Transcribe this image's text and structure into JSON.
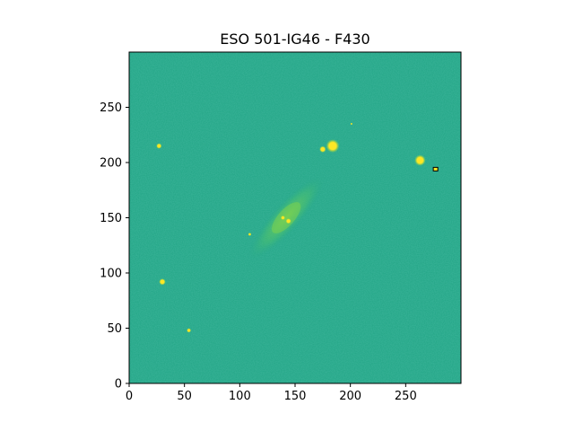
{
  "figure": {
    "title": "ESO 501-IG46 - F430"
  },
  "image_panel": {
    "colormap_background": "#21a585",
    "highlight_color": "#fde725",
    "galaxy_color": "#5ec962",
    "frame_color": "#000000",
    "x_range": [
      0,
      300
    ],
    "y_range": [
      0,
      300
    ],
    "x_ticks": [
      "0",
      "50",
      "100",
      "150",
      "200",
      "250"
    ],
    "y_ticks": [
      "0",
      "50",
      "100",
      "150",
      "200",
      "250"
    ],
    "x_tick_values": [
      0,
      50,
      100,
      150,
      200,
      250
    ],
    "y_tick_values": [
      0,
      50,
      100,
      150,
      200,
      250
    ],
    "sources": [
      {
        "x": 184,
        "y": 215,
        "size": 6,
        "kind": "star"
      },
      {
        "x": 175,
        "y": 212,
        "size": 3,
        "kind": "star"
      },
      {
        "x": 263,
        "y": 202,
        "size": 5,
        "kind": "star"
      },
      {
        "x": 27,
        "y": 215,
        "size": 2.5,
        "kind": "star"
      },
      {
        "x": 30,
        "y": 92,
        "size": 3,
        "kind": "star"
      },
      {
        "x": 54,
        "y": 48,
        "size": 2,
        "kind": "star"
      },
      {
        "x": 109,
        "y": 135,
        "size": 1.5,
        "kind": "star"
      },
      {
        "x": 144,
        "y": 147,
        "size": 2.5,
        "kind": "knot"
      },
      {
        "x": 139,
        "y": 150,
        "size": 2,
        "kind": "knot"
      },
      {
        "x": 201,
        "y": 235,
        "size": 1,
        "kind": "star"
      }
    ],
    "marker": {
      "x": 277,
      "y": 194
    }
  }
}
